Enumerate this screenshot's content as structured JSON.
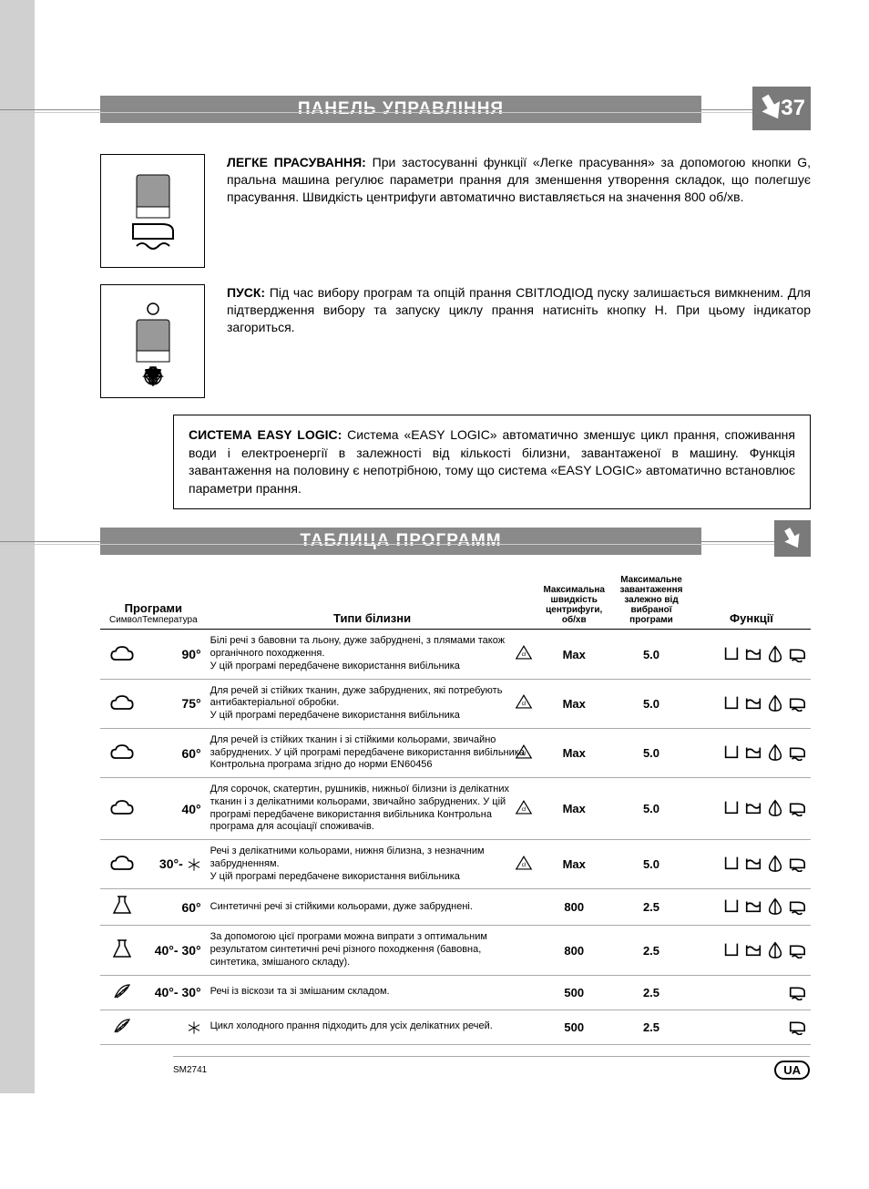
{
  "header": {
    "title": "ПАНЕЛЬ УПРАВЛІННЯ",
    "page_number": "37"
  },
  "section_easy_iron": {
    "label": "ЛЕГКЕ ПРАСУВАННЯ:",
    "text": "При застосуванні функції «Легке прасування» за допомогою кнопки G, пральна машина регулює параметри прання для зменшення утворення складок, що полегшує прасування. Швидкість центрифуги автоматично виставляється на значення 800 об/хв."
  },
  "section_start": {
    "label": "ПУСК:",
    "text": "Під час вибору програм та опцій прання СВІТЛОДІОД пуску залишається вимкненим. Для підтвердження вибору та запуску циклу прання натисніть кнопку H. При цьому індикатор загориться."
  },
  "section_easy_logic": {
    "label": "СИСТЕМА EASY LOGIC:",
    "text": "Система «EASY LOGIC» автоматично зменшує цикл прання, споживання води і електроенергії в залежності від кількості білизни, завантаженої в машину. Функція завантаження на половину є непотрібною, тому що система «EASY LOGIC» автоматично встановлює параметри прання."
  },
  "table_header": "ТАБЛИЦА ПРОГРАММ",
  "table": {
    "columns": {
      "programs": "Програми",
      "symbol": "Символ",
      "temp": "Температура",
      "types": "Типи білизни",
      "spin": "Максимальна швидкість центрифуги, об/хв",
      "load": "Максимальне завантаження залежно від вибраної програми",
      "funcs": "Функції"
    },
    "rows": [
      {
        "symbol": "cloud",
        "temp": "90°",
        "desc": "Білі речі з бавовни та льону, дуже забруднені, з плямами також органічного походження.\nУ цій програмі передбачене використання вибільника",
        "cl": true,
        "spin": "Max",
        "load": "5.0",
        "funcs": 4
      },
      {
        "symbol": "cloud",
        "temp": "75°",
        "desc": "Для речей зі стійких тканин, дуже забруднених, які потребують антибактеріальної обробки.\nУ цій програмі передбачене використання вибільника",
        "cl": true,
        "spin": "Max",
        "load": "5.0",
        "funcs": 4
      },
      {
        "symbol": "cloud",
        "temp": "60°",
        "desc": "Для речей із стійких тканин і зі стійкими кольорами, звичайно забруднених. У цій програмі передбачене використання вибільника Контрольна програма згідно до норми EN60456",
        "cl": true,
        "spin": "Max",
        "load": "5.0",
        "funcs": 4
      },
      {
        "symbol": "cloud",
        "temp": "40°",
        "desc": "Для сорочок, скатертин, рушників, нижньої білизни із делікатних тканин і з делікатними кольорами, звичайно забруднених. У цій програмі передбачене використання вибільника Контрольна програма для асоціації споживачів.",
        "cl": true,
        "spin": "Max",
        "load": "5.0",
        "funcs": 4
      },
      {
        "symbol": "cloud-snow",
        "temp": "30°-",
        "desc": "Речі з делікатними кольорами, нижня білизна, з незначним забрудненням.\nУ цій програмі передбачене використання вибільника",
        "cl": true,
        "spin": "Max",
        "load": "5.0",
        "funcs": 4
      },
      {
        "symbol": "flask",
        "temp": "60°",
        "desc": "Синтетичні речі зі стійкими кольорами, дуже забруднені.",
        "cl": false,
        "spin": "800",
        "load": "2.5",
        "funcs": 4
      },
      {
        "symbol": "flask",
        "temp": "40°- 30°",
        "desc": "За допомогою цієї програми можна випрати з оптимальним результатом синтетичні речі різного походження (бавовна, синтетика, змішаного складу).",
        "cl": false,
        "spin": "800",
        "load": "2.5",
        "funcs": 4
      },
      {
        "symbol": "feather",
        "temp": "40°- 30°",
        "desc": "Речі із віскози та зі змішаним складом.",
        "cl": false,
        "spin": "500",
        "load": "2.5",
        "funcs": 1
      },
      {
        "symbol": "feather-snow",
        "temp": "",
        "desc": "Цикл холодного прання підходить для усіх делікатних речей.",
        "cl": false,
        "spin": "500",
        "load": "2.5",
        "funcs": 1
      }
    ]
  },
  "footer": {
    "code": "SM2741",
    "lang": "UA"
  },
  "colors": {
    "header_bar": "#8a8a8a",
    "left_bar": "#d0d0d0",
    "page_corner": "#7a7a7a",
    "text": "#000000",
    "bg": "#ffffff"
  }
}
